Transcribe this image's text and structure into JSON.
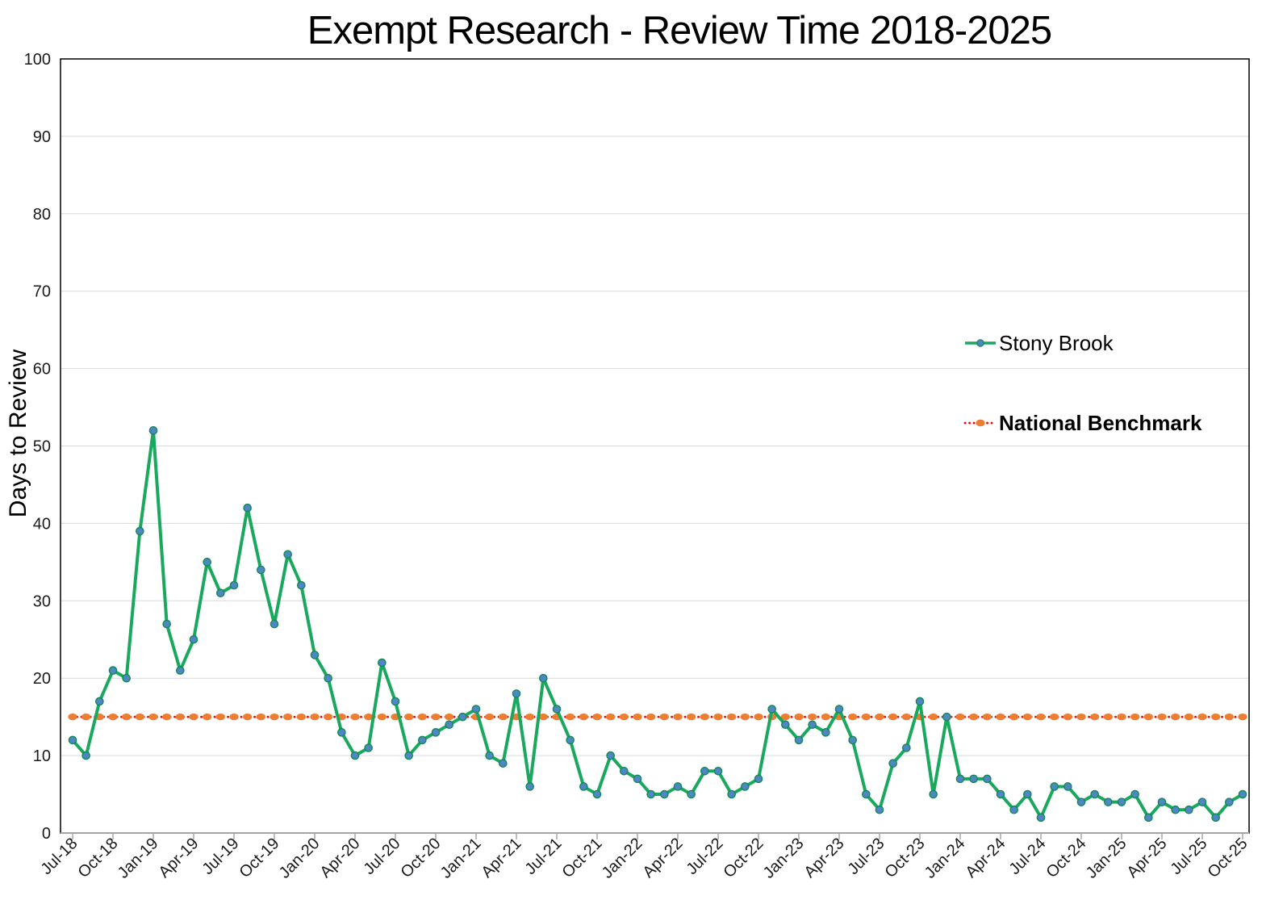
{
  "chart_data": {
    "type": "line",
    "title": "Exempt Research - Review Time 2018-2025",
    "xlabel": "",
    "ylabel": "Days to Review",
    "ylim": [
      0,
      100
    ],
    "ytick_interval": 10,
    "x_tick_every": 3,
    "grid": true,
    "legend_position": "right",
    "categories": [
      "Jul-18",
      "Aug-18",
      "Sep-18",
      "Oct-18",
      "Nov-18",
      "Dec-18",
      "Jan-19",
      "Feb-19",
      "Mar-19",
      "Apr-19",
      "May-19",
      "Jun-19",
      "Jul-19",
      "Aug-19",
      "Sep-19",
      "Oct-19",
      "Nov-19",
      "Dec-19",
      "Jan-20",
      "Feb-20",
      "Mar-20",
      "Apr-20",
      "May-20",
      "Jun-20",
      "Jul-20",
      "Aug-20",
      "Sep-20",
      "Oct-20",
      "Nov-20",
      "Dec-20",
      "Jan-21",
      "Feb-21",
      "Mar-21",
      "Apr-21",
      "May-21",
      "Jun-21",
      "Jul-21",
      "Aug-21",
      "Sep-21",
      "Oct-21",
      "Nov-21",
      "Dec-21",
      "Jan-22",
      "Feb-22",
      "Mar-22",
      "Apr-22",
      "May-22",
      "Jun-22",
      "Jul-22",
      "Aug-22",
      "Sep-22",
      "Oct-22",
      "Nov-22",
      "Dec-22",
      "Jan-23",
      "Feb-23",
      "Mar-23",
      "Apr-23",
      "May-23",
      "Jun-23",
      "Jul-23",
      "Aug-23",
      "Sep-23",
      "Oct-23",
      "Nov-23",
      "Dec-23",
      "Jan-24",
      "Feb-24",
      "Mar-24",
      "Apr-24",
      "May-24",
      "Jun-24",
      "Jul-24",
      "Aug-24",
      "Sep-24",
      "Oct-24",
      "Nov-24",
      "Dec-24",
      "Jan-25",
      "Feb-25",
      "Mar-25",
      "Apr-25",
      "May-25",
      "Jun-25",
      "Jul-25",
      "Aug-25",
      "Sep-25",
      "Oct-25"
    ],
    "series": [
      {
        "name": "Stony Brook",
        "line_color": "#1AA85E",
        "marker_fill": "#4E86C6",
        "marker_stroke": "#128A52",
        "values": [
          12,
          10,
          17,
          21,
          20,
          39,
          52,
          27,
          21,
          25,
          35,
          31,
          32,
          42,
          34,
          27,
          36,
          32,
          23,
          20,
          13,
          10,
          11,
          22,
          17,
          10,
          12,
          13,
          14,
          15,
          16,
          10,
          9,
          18,
          6,
          20,
          16,
          12,
          6,
          5,
          10,
          8,
          7,
          5,
          5,
          6,
          5,
          8,
          8,
          5,
          6,
          7,
          16,
          14,
          12,
          14,
          13,
          16,
          12,
          5,
          3,
          9,
          11,
          17,
          5,
          15,
          7,
          7,
          7,
          5,
          3,
          5,
          2,
          6,
          6,
          4,
          5,
          4,
          4,
          5,
          2,
          4,
          3,
          3,
          4,
          2,
          4,
          5
        ]
      },
      {
        "name": "National Benchmark",
        "line_color": "#FF0000",
        "marker_fill": "#ED7D31",
        "line_style": "dotted",
        "constant_value": 15,
        "legend_bold": true
      }
    ],
    "style": {
      "grid_color": "#D9D9D9",
      "border_color": "#000000",
      "x_axis_color": "#A6A6A6",
      "tick_label_color": "#1a1a1a",
      "background": "#FFFFFF"
    }
  }
}
